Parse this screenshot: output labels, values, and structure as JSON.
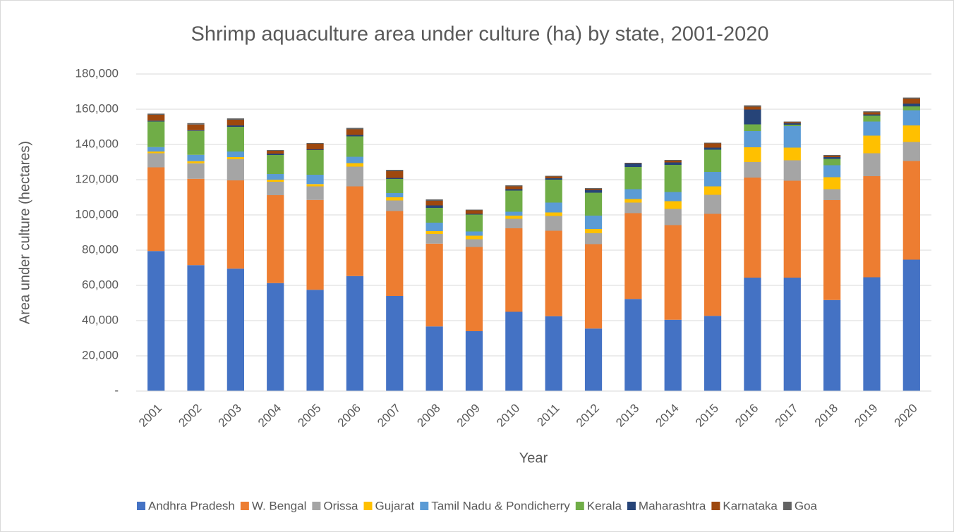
{
  "chart_data": {
    "type": "stacked_bar",
    "title": "Shrimp aquaculture area under culture (ha) by state, 2001-2020",
    "x_label": "Year",
    "y_label": "Area under culture (hectares)",
    "categories": [
      "2001",
      "2002",
      "2003",
      "2004",
      "2005",
      "2006",
      "2007",
      "2008",
      "2009",
      "2010",
      "2011",
      "2012",
      "2013",
      "2014",
      "2015",
      "2016",
      "2017",
      "2018",
      "2019",
      "2020"
    ],
    "series": [
      {
        "name": "Andhra Pradesh",
        "color": "#4472c4",
        "values": [
          79500,
          71500,
          69500,
          61300,
          57500,
          65300,
          54000,
          36700,
          34000,
          45000,
          42500,
          35500,
          52300,
          40500,
          42700,
          64400,
          64400,
          51700,
          64600,
          74600
        ]
      },
      {
        "name": "W. Bengal",
        "color": "#ed7d31",
        "values": [
          47500,
          49000,
          50100,
          49900,
          51000,
          50900,
          48200,
          47000,
          47800,
          47400,
          48500,
          47900,
          48700,
          53700,
          57900,
          56800,
          55000,
          56700,
          57400,
          56000
        ]
      },
      {
        "name": "Orissa",
        "color": "#a5a5a5",
        "values": [
          8000,
          8800,
          12000,
          7600,
          7700,
          11200,
          6000,
          5500,
          4400,
          5400,
          8400,
          6200,
          6000,
          9200,
          10800,
          8800,
          11600,
          6200,
          13000,
          10800
        ]
      },
      {
        "name": "Gujarat",
        "color": "#ffc000",
        "values": [
          1000,
          1200,
          1200,
          1200,
          1300,
          2000,
          1800,
          1600,
          2000,
          1800,
          2000,
          2400,
          2000,
          4400,
          4800,
          8400,
          7200,
          6800,
          10000,
          9400
        ]
      },
      {
        "name": "Tamil Nadu & Pondicherry",
        "color": "#5b9bd5",
        "values": [
          2500,
          3600,
          3200,
          3200,
          5300,
          3600,
          2400,
          4800,
          2400,
          2200,
          5600,
          7600,
          5600,
          5200,
          8200,
          9200,
          12200,
          6800,
          8000,
          8600
        ]
      },
      {
        "name": "Kerala",
        "color": "#70ad47",
        "values": [
          14500,
          13600,
          14000,
          10800,
          14000,
          11600,
          8000,
          8400,
          9600,
          12000,
          13000,
          13000,
          12600,
          15400,
          12600,
          3800,
          800,
          3600,
          3400,
          2200
        ]
      },
      {
        "name": "Maharashtra",
        "color": "#264478",
        "values": [
          500,
          400,
          800,
          800,
          400,
          800,
          600,
          1400,
          400,
          800,
          800,
          1600,
          2000,
          1400,
          1200,
          8400,
          800,
          1000,
          600,
          1600
        ]
      },
      {
        "name": "Karnataka",
        "color": "#9e480e",
        "values": [
          3300,
          3200,
          3200,
          1600,
          3200,
          3200,
          3800,
          2600,
          2000,
          1600,
          1000,
          600,
          200,
          1000,
          2400,
          1600,
          600,
          800,
          1200,
          2800
        ]
      },
      {
        "name": "Goa",
        "color": "#636363",
        "values": [
          700,
          800,
          800,
          400,
          400,
          800,
          800,
          800,
          400,
          600,
          400,
          400,
          200,
          400,
          400,
          800,
          400,
          400,
          600,
          600
        ]
      }
    ],
    "ylim": [
      0,
      180000
    ],
    "yticks": [
      {
        "value": 0,
        "label": "-"
      },
      {
        "value": 20000,
        "label": "20,000"
      },
      {
        "value": 40000,
        "label": "40,000"
      },
      {
        "value": 60000,
        "label": "60,000"
      },
      {
        "value": 80000,
        "label": "80,000"
      },
      {
        "value": 100000,
        "label": "100,000"
      },
      {
        "value": 120000,
        "label": "120,000"
      },
      {
        "value": 140000,
        "label": "140,000"
      },
      {
        "value": 160000,
        "label": "160,000"
      },
      {
        "value": 180000,
        "label": "180,000"
      }
    ],
    "grid": true,
    "legend": "bottom"
  }
}
